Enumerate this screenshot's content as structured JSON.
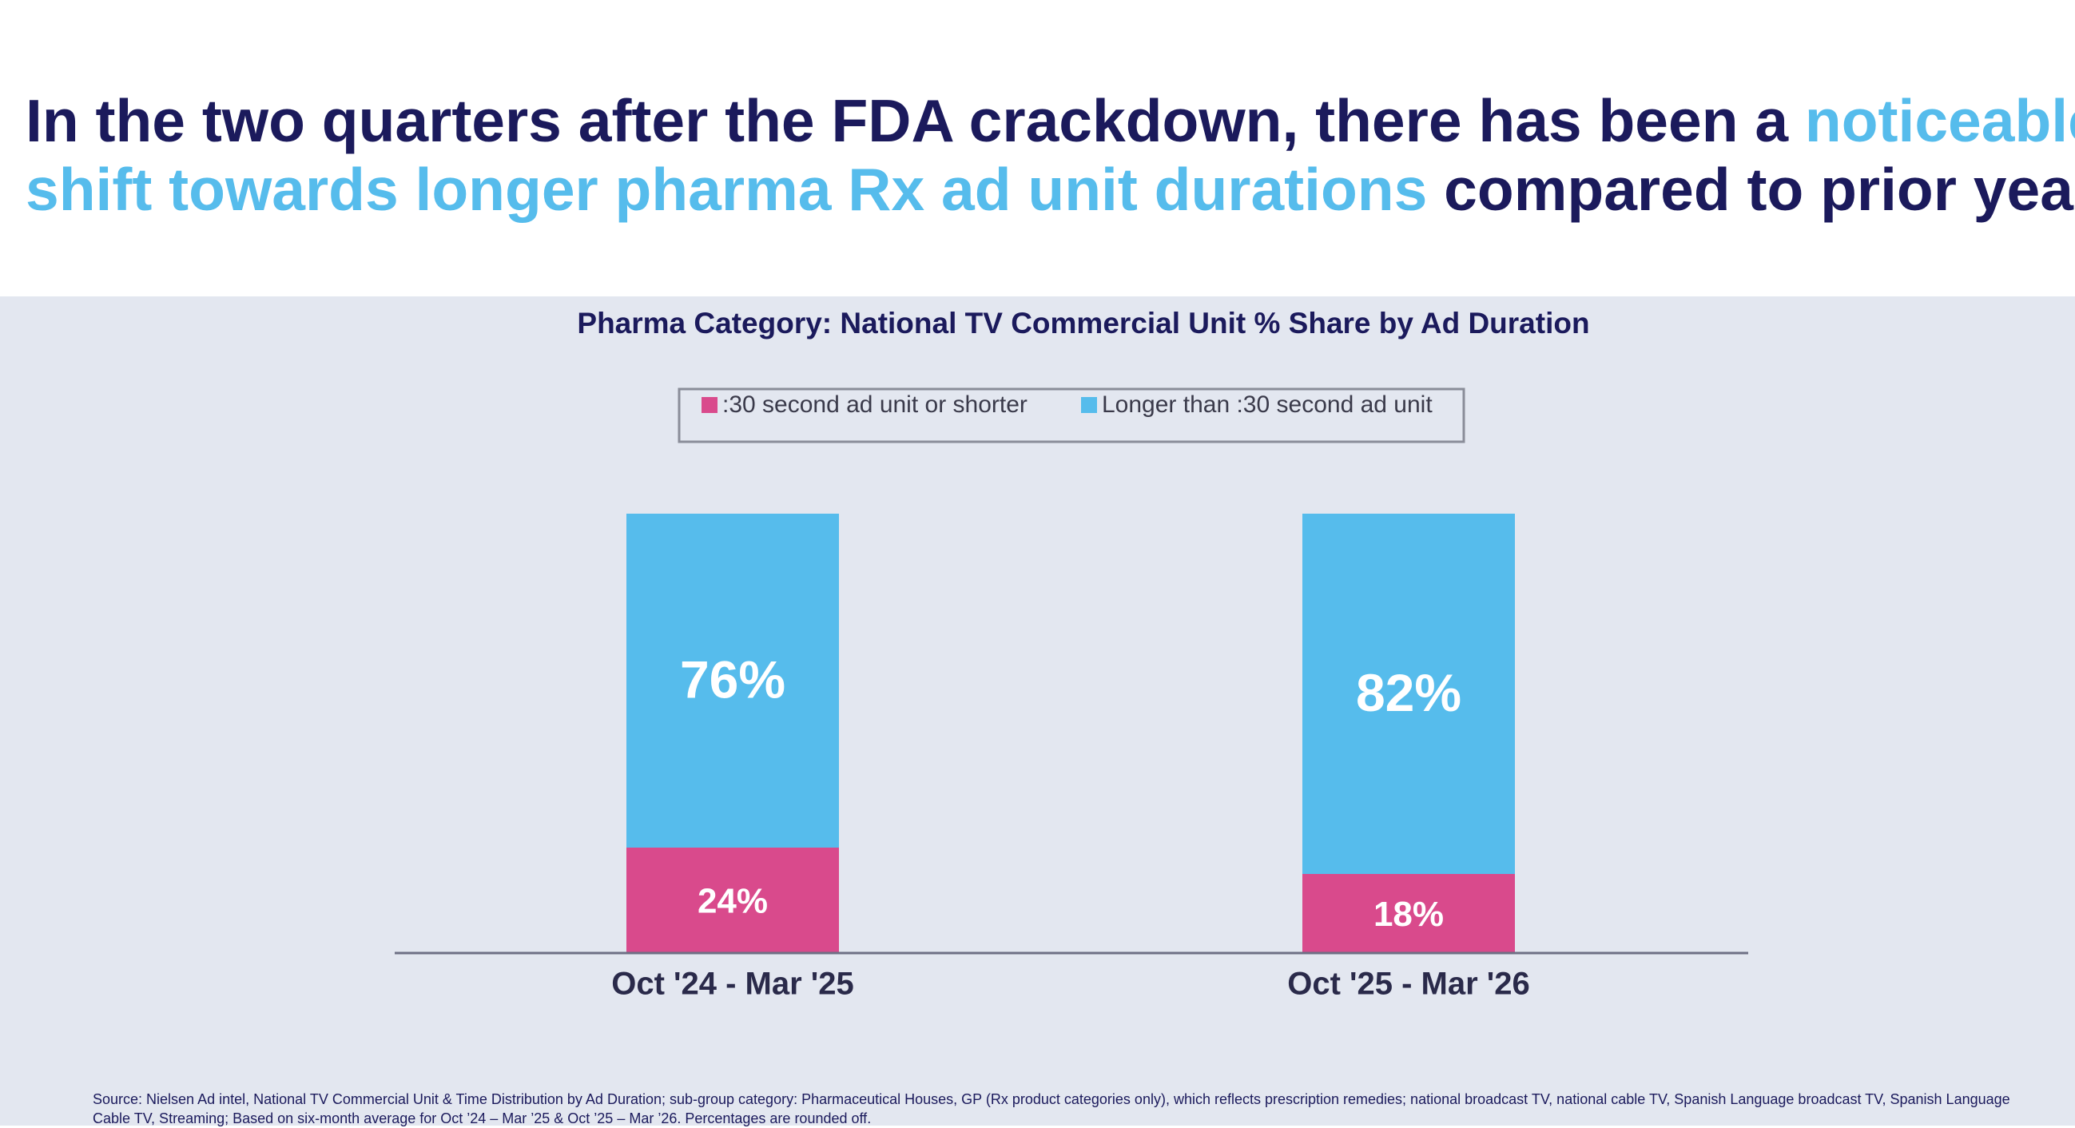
{
  "headline": {
    "lines": [
      [
        {
          "text": "In the two quarters after the FDA crackdown, there has been a ",
          "color": "#1b1a5c"
        },
        {
          "text": "noticeable",
          "color": "#56bcec"
        }
      ],
      [
        {
          "text": "shift towards longer pharma Rx ad unit durations",
          "color": "#56bcec"
        },
        {
          "text": " compared to prior year",
          "color": "#1b1a5c"
        }
      ]
    ]
  },
  "chart_data": {
    "type": "stacked_bar",
    "title": "Pharma Category: National TV Commercial Unit % Share by Ad Duration",
    "categories": [
      "Oct '24 - Mar '25",
      "Oct '25 - Mar '26"
    ],
    "series": [
      {
        "name": ":30 second ad unit or shorter",
        "color": "#d94a8c",
        "values": [
          24,
          18
        ],
        "value_labels": [
          "24%",
          "18%"
        ]
      },
      {
        "name": "Longer than :30 second ad unit",
        "color": "#56bcec",
        "values": [
          76,
          82
        ],
        "value_labels": [
          "76%",
          "82%"
        ]
      }
    ],
    "ylim": [
      0,
      100
    ]
  },
  "footnote": "Source: Nielsen Ad intel, National TV Commercial Unit & Time Distribution by Ad Duration; sub-group category: Pharmaceutical Houses, GP (Rx product categories only), which reflects prescription remedies; national broadcast TV, national cable TV, Spanish Language broadcast TV, Spanish Language Cable TV, Streaming; Based on six-month average for Oct ’24 – Mar ’25 & Oct ’25 – Mar ’26. Percentages are rounded off."
}
